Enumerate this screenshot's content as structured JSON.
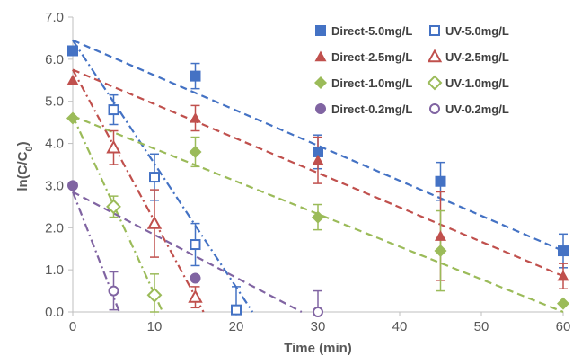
{
  "chart_data": {
    "type": "scatter",
    "xlabel": "Time (min)",
    "ylabel": "ln(C/C0)",
    "ylabel_parts": {
      "main": "ln(C/C",
      "sub": "0",
      "close": ")"
    },
    "xlim": [
      0,
      60
    ],
    "ylim": [
      0,
      7
    ],
    "x_ticks": [
      0,
      10,
      20,
      30,
      40,
      50,
      60
    ],
    "y_ticks": [
      "0.0",
      "1.0",
      "2.0",
      "3.0",
      "4.0",
      "5.0",
      "6.0",
      "7.0"
    ],
    "grid": false,
    "legend_position": "top-right",
    "series": [
      {
        "name": "Direct-5.0mg/L",
        "color": "#4472C4",
        "marker": "square",
        "filled": true,
        "line": "dashed",
        "fit": [
          [
            0,
            6.45
          ],
          [
            60,
            1.45
          ]
        ],
        "points": [
          [
            0,
            6.2,
            0.1
          ],
          [
            15,
            5.6,
            0.3
          ],
          [
            30,
            3.8,
            0.4
          ],
          [
            45,
            3.1,
            0.45
          ],
          [
            60,
            1.45,
            0.4
          ]
        ]
      },
      {
        "name": "UV-5.0mg/L",
        "color": "#4472C4",
        "marker": "square",
        "filled": false,
        "line": "dashdot",
        "fit": [
          [
            0,
            6.45
          ],
          [
            22,
            0
          ]
        ],
        "points": [
          [
            5,
            4.8,
            0.35
          ],
          [
            10,
            3.2,
            0.55
          ],
          [
            15,
            1.6,
            0.5
          ],
          [
            20,
            0.05,
            0.55
          ]
        ]
      },
      {
        "name": "Direct-2.5mg/L",
        "color": "#C0504D",
        "marker": "triangle",
        "filled": true,
        "line": "dashed",
        "fit": [
          [
            0,
            5.75
          ],
          [
            60,
            0.85
          ]
        ],
        "points": [
          [
            0,
            5.5,
            0.0
          ],
          [
            15,
            4.6,
            0.3
          ],
          [
            30,
            3.6,
            0.55
          ],
          [
            45,
            1.8,
            1.05
          ],
          [
            60,
            0.85,
            0.3
          ]
        ]
      },
      {
        "name": "UV-2.5mg/L",
        "color": "#C0504D",
        "marker": "triangle",
        "filled": false,
        "line": "dashdot",
        "fit": [
          [
            0,
            5.75
          ],
          [
            16,
            0
          ]
        ],
        "points": [
          [
            5,
            3.9,
            0.4
          ],
          [
            10,
            2.1,
            0.8
          ],
          [
            15,
            0.35,
            0.25
          ]
        ]
      },
      {
        "name": "Direct-1.0mg/L",
        "color": "#9BBB59",
        "marker": "diamond",
        "filled": true,
        "line": "dashed",
        "fit": [
          [
            0,
            4.65
          ],
          [
            60,
            0.0
          ]
        ],
        "points": [
          [
            0,
            4.6,
            0.0
          ],
          [
            15,
            3.8,
            0.35
          ],
          [
            30,
            2.25,
            0.3
          ],
          [
            45,
            1.45,
            0.95
          ],
          [
            60,
            0.2,
            0.0
          ]
        ]
      },
      {
        "name": "UV-1.0mg/L",
        "color": "#9BBB59",
        "marker": "diamond",
        "filled": false,
        "line": "dashdot",
        "fit": [
          [
            0,
            4.65
          ],
          [
            11,
            0
          ]
        ],
        "points": [
          [
            5,
            2.5,
            0.25
          ],
          [
            10,
            0.4,
            0.5
          ]
        ]
      },
      {
        "name": "Direct-0.2mg/L",
        "color": "#8064A2",
        "marker": "circle",
        "filled": true,
        "line": "dashed",
        "fit": [
          [
            0,
            2.85
          ],
          [
            28,
            0
          ]
        ],
        "points": [
          [
            0,
            3.0,
            0.0
          ],
          [
            15,
            0.8,
            0.0
          ]
        ]
      },
      {
        "name": "UV-0.2mg/L",
        "color": "#8064A2",
        "marker": "circle",
        "filled": false,
        "line": "dashdot",
        "fit": [
          [
            0,
            2.85
          ],
          [
            5.7,
            0
          ]
        ],
        "points": [
          [
            5,
            0.5,
            0.45
          ],
          [
            30,
            0.0,
            0.5
          ]
        ]
      }
    ]
  }
}
